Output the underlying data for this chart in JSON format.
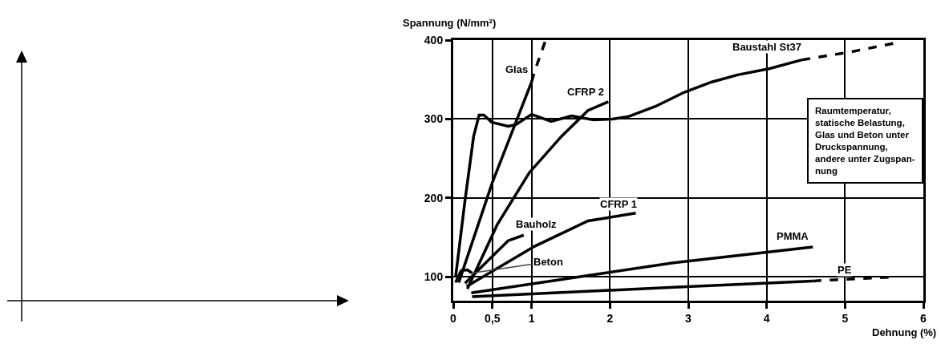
{
  "chart_data": {
    "type": "line",
    "xlabel": "Dehnung (%)",
    "ylabel": "Spannung (N/mm²)",
    "xlim": [
      0,
      6
    ],
    "ylim": [
      70,
      400
    ],
    "xticks": [
      0,
      {
        "value": 0.5,
        "label": "0,5"
      },
      1,
      2,
      3,
      4,
      5,
      6
    ],
    "yticks": [
      100,
      200,
      300,
      400
    ],
    "grid": true,
    "legend": false,
    "marker": "none",
    "line_style": "solid",
    "series": [
      {
        "name": "Glas",
        "color": "#000000",
        "x": [
          0.07,
          0.5,
          1.0
        ],
        "values": [
          93,
          220,
          347
        ]
      },
      {
        "color": "#000000",
        "line_style": "dashed",
        "x": [
          1.0,
          1.04,
          1.18
        ],
        "values": [
          347,
          361,
          400
        ]
      },
      {
        "name": "Baustahl St37",
        "color": "#000000",
        "x": [
          0.03,
          0.15,
          0.26,
          0.33,
          0.39,
          0.49,
          0.7,
          0.8,
          1.0,
          1.25,
          1.51,
          1.79,
          2.03,
          2.23,
          2.58,
          2.95,
          3.3,
          3.63,
          4.04,
          4.45
        ],
        "values": [
          100,
          197,
          278,
          305,
          305,
          296,
          291,
          293,
          306,
          297,
          304,
          299,
          300,
          303,
          316,
          334,
          347,
          356,
          364,
          375
        ]
      },
      {
        "color": "#000000",
        "line_style": "dashed",
        "x": [
          4.45,
          5.07,
          5.68
        ],
        "values": [
          375,
          385,
          397
        ]
      },
      {
        "name": "CFRP 2",
        "color": "#000000",
        "x": [
          0.18,
          0.56,
          0.97,
          1.38,
          1.72,
          1.98
        ],
        "values": [
          85,
          166,
          232,
          278,
          311,
          322
        ]
      },
      {
        "name": "Bauholz",
        "color": "#000000",
        "x": [
          0.15,
          0.7,
          0.9
        ],
        "values": [
          92,
          146,
          153
        ]
      },
      {
        "name": "Beton",
        "color": "#000000",
        "x": [
          0.03,
          0.1,
          0.18,
          0.24
        ],
        "values": [
          93,
          108,
          109,
          105
        ]
      },
      {
        "name": "CFRP 1",
        "color": "#000000",
        "x": [
          0.17,
          1.04,
          1.72,
          2.33
        ],
        "values": [
          88,
          139,
          171,
          181
        ]
      },
      {
        "name": "PMMA",
        "color": "#000000",
        "x": [
          0.23,
          2.81,
          4.59
        ],
        "values": [
          80,
          118,
          138
        ]
      },
      {
        "name": "PE",
        "color": "#000000",
        "x": [
          0.24,
          2.81,
          4.59
        ],
        "values": [
          75,
          87,
          95
        ]
      },
      {
        "color": "#000000",
        "line_style": "dashed",
        "x": [
          4.59,
          5.61
        ],
        "values": [
          95,
          100
        ]
      }
    ],
    "annotations": [
      "Raumtemperatur,\nstatische Belastung,\nGlas und Beton unter\nDruckspannung,\nandere unter Zugspan-\nnung"
    ]
  }
}
